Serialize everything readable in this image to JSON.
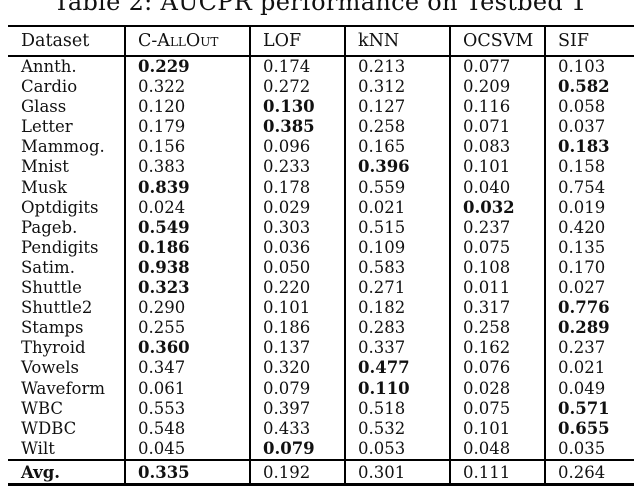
{
  "title": "Table 2: AUCPR performance on Testbed 1",
  "table": {
    "columns": [
      "Dataset",
      "C-AllOut",
      "LOF",
      "kNN",
      "OCSVM",
      "SIF"
    ],
    "rows": [
      {
        "dataset": "Annth.",
        "values": [
          "0.229",
          "0.174",
          "0.213",
          "0.077",
          "0.103"
        ],
        "bold": [
          0
        ]
      },
      {
        "dataset": "Cardio",
        "values": [
          "0.322",
          "0.272",
          "0.312",
          "0.209",
          "0.582"
        ],
        "bold": [
          4
        ]
      },
      {
        "dataset": "Glass",
        "values": [
          "0.120",
          "0.130",
          "0.127",
          "0.116",
          "0.058"
        ],
        "bold": [
          1
        ]
      },
      {
        "dataset": "Letter",
        "values": [
          "0.179",
          "0.385",
          "0.258",
          "0.071",
          "0.037"
        ],
        "bold": [
          1
        ]
      },
      {
        "dataset": "Mammog.",
        "values": [
          "0.156",
          "0.096",
          "0.165",
          "0.083",
          "0.183"
        ],
        "bold": [
          4
        ]
      },
      {
        "dataset": "Mnist",
        "values": [
          "0.383",
          "0.233",
          "0.396",
          "0.101",
          "0.158"
        ],
        "bold": [
          2
        ]
      },
      {
        "dataset": "Musk",
        "values": [
          "0.839",
          "0.178",
          "0.559",
          "0.040",
          "0.754"
        ],
        "bold": [
          0
        ]
      },
      {
        "dataset": "Optdigits",
        "values": [
          "0.024",
          "0.029",
          "0.021",
          "0.032",
          "0.019"
        ],
        "bold": [
          3
        ]
      },
      {
        "dataset": "Pageb.",
        "values": [
          "0.549",
          "0.303",
          "0.515",
          "0.237",
          "0.420"
        ],
        "bold": [
          0
        ]
      },
      {
        "dataset": "Pendigits",
        "values": [
          "0.186",
          "0.036",
          "0.109",
          "0.075",
          "0.135"
        ],
        "bold": [
          0
        ]
      },
      {
        "dataset": "Satim.",
        "values": [
          "0.938",
          "0.050",
          "0.583",
          "0.108",
          "0.170"
        ],
        "bold": [
          0
        ]
      },
      {
        "dataset": "Shuttle",
        "values": [
          "0.323",
          "0.220",
          "0.271",
          "0.011",
          "0.027"
        ],
        "bold": [
          0
        ]
      },
      {
        "dataset": "Shuttle2",
        "values": [
          "0.290",
          "0.101",
          "0.182",
          "0.317",
          "0.776"
        ],
        "bold": [
          4
        ]
      },
      {
        "dataset": "Stamps",
        "values": [
          "0.255",
          "0.186",
          "0.283",
          "0.258",
          "0.289"
        ],
        "bold": [
          4
        ]
      },
      {
        "dataset": "Thyroid",
        "values": [
          "0.360",
          "0.137",
          "0.337",
          "0.162",
          "0.237"
        ],
        "bold": [
          0
        ]
      },
      {
        "dataset": "Vowels",
        "values": [
          "0.347",
          "0.320",
          "0.477",
          "0.076",
          "0.021"
        ],
        "bold": [
          2
        ]
      },
      {
        "dataset": "Waveform",
        "values": [
          "0.061",
          "0.079",
          "0.110",
          "0.028",
          "0.049"
        ],
        "bold": [
          2
        ]
      },
      {
        "dataset": "WBC",
        "values": [
          "0.553",
          "0.397",
          "0.518",
          "0.075",
          "0.571"
        ],
        "bold": [
          4
        ]
      },
      {
        "dataset": "WDBC",
        "values": [
          "0.548",
          "0.433",
          "0.532",
          "0.101",
          "0.655"
        ],
        "bold": [
          4
        ]
      },
      {
        "dataset": "Wilt",
        "values": [
          "0.045",
          "0.079",
          "0.053",
          "0.048",
          "0.035"
        ],
        "bold": [
          1
        ]
      }
    ],
    "footer": {
      "dataset": "Avg.",
      "values": [
        "0.335",
        "0.192",
        "0.301",
        "0.111",
        "0.264"
      ],
      "bold": [
        0
      ],
      "label_bold": true
    }
  }
}
